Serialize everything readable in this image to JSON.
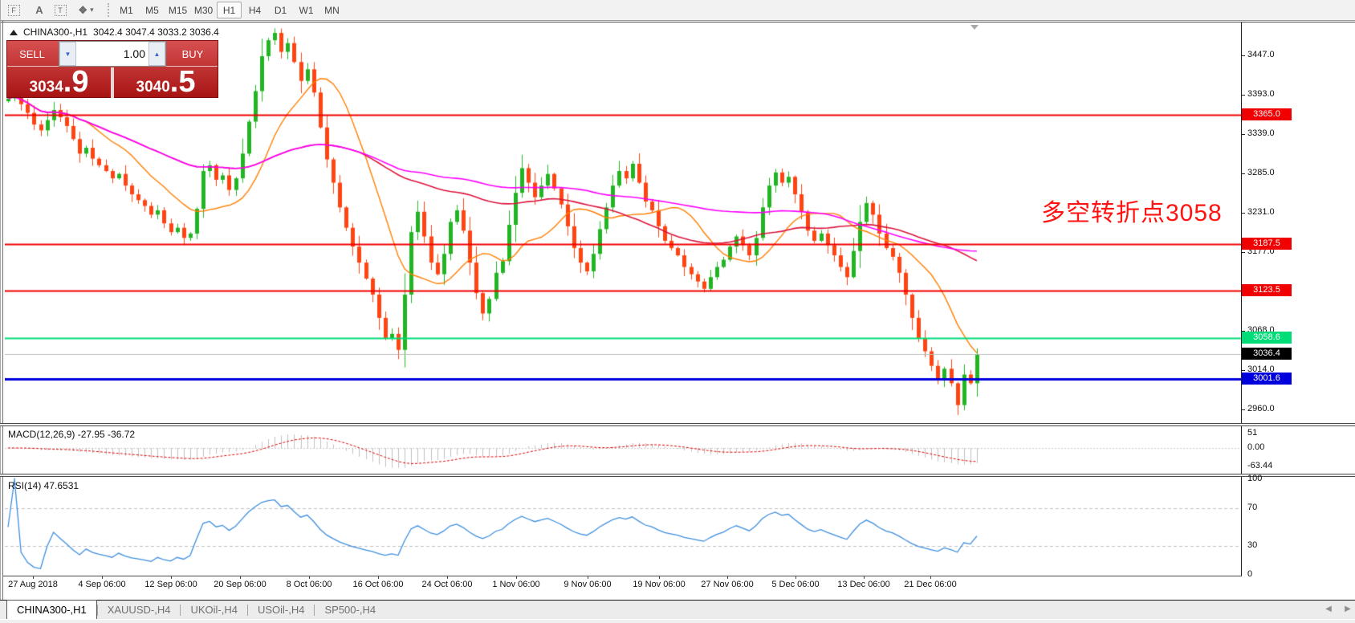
{
  "toolbar": {
    "icon_buttons": [
      {
        "name": "indicators-grid-icon",
        "glyph": "F"
      },
      {
        "name": "arrow-tool-icon",
        "glyph": "A"
      },
      {
        "name": "text-label-tool-icon",
        "glyph": "T"
      },
      {
        "name": "cycles-tool-icon",
        "glyph": "❖"
      }
    ],
    "dropdown_caret": "▾",
    "timeframes": [
      "M1",
      "M5",
      "M15",
      "M30",
      "H1",
      "H4",
      "D1",
      "W1",
      "MN"
    ],
    "active_timeframe": "H1"
  },
  "window": {
    "title_symbol": "CHINA300-,H1",
    "title_ohlc": "3042.4 3047.4 3033.2 3036.4"
  },
  "trade_panel": {
    "sell_label": "SELL",
    "buy_label": "BUY",
    "volume": "1.00",
    "sell_int": "3034",
    "sell_big": ".9",
    "buy_int": "3040",
    "buy_big": ".5",
    "spin_down": "▼",
    "spin_up": "▲"
  },
  "annotation": {
    "text": "多空转折点3058",
    "color": "#ff1212"
  },
  "price_axis": {
    "ticks": [
      3447.0,
      3393.0,
      3339.0,
      3285.0,
      3231.0,
      3177.0,
      3068.0,
      3014.0,
      2960.0
    ]
  },
  "levels": [
    {
      "price": 3365.0,
      "label": "3365.0",
      "color": "#f00000",
      "width": 2
    },
    {
      "price": 3187.5,
      "label": "3187.5",
      "color": "#f00000",
      "width": 2
    },
    {
      "price": 3123.5,
      "label": "3123.5",
      "color": "#f00000",
      "width": 2
    },
    {
      "price": 3058.6,
      "label": "3058.6",
      "color": "#00dc78",
      "width": 2
    },
    {
      "price": 3001.6,
      "label": "3001.6",
      "color": "#0000dc",
      "width": 3
    }
  ],
  "current_price": {
    "value": 3036.4,
    "label": "3036.4",
    "line_color": "#bdbdbd",
    "label_bg": "#000000"
  },
  "series": {
    "up_color": "#22b422",
    "down_color": "#ff4413",
    "ma_fast_color": "#ff7e00",
    "ma_mid_color": "#dc143c",
    "ma_slow_color": "#ff00ff",
    "ma_fast_period": 13,
    "ma_mid_period": 55,
    "ma_slow_period": 90,
    "closes": [
      3388,
      3392,
      3380,
      3368,
      3352,
      3344,
      3358,
      3372,
      3362,
      3350,
      3332,
      3312,
      3320,
      3305,
      3296,
      3288,
      3278,
      3284,
      3268,
      3256,
      3248,
      3240,
      3228,
      3234,
      3216,
      3204,
      3210,
      3196,
      3202,
      3236,
      3288,
      3296,
      3276,
      3282,
      3262,
      3278,
      3312,
      3356,
      3398,
      3446,
      3468,
      3478,
      3452,
      3464,
      3438,
      3412,
      3428,
      3396,
      3348,
      3304,
      3272,
      3238,
      3210,
      3184,
      3162,
      3140,
      3118,
      3086,
      3058,
      3064,
      3042,
      3118,
      3204,
      3232,
      3198,
      3162,
      3146,
      3174,
      3218,
      3234,
      3206,
      3162,
      3120,
      3092,
      3112,
      3148,
      3164,
      3214,
      3258,
      3292,
      3272,
      3252,
      3268,
      3284,
      3264,
      3242,
      3212,
      3182,
      3162,
      3150,
      3174,
      3208,
      3238,
      3268,
      3288,
      3278,
      3298,
      3272,
      3246,
      3234,
      3212,
      3192,
      3182,
      3172,
      3156,
      3146,
      3136,
      3126,
      3142,
      3156,
      3166,
      3184,
      3198,
      3186,
      3172,
      3196,
      3238,
      3268,
      3286,
      3272,
      3280,
      3256,
      3232,
      3206,
      3192,
      3202,
      3186,
      3172,
      3156,
      3142,
      3178,
      3218,
      3244,
      3228,
      3202,
      3182,
      3170,
      3148,
      3118,
      3086,
      3058,
      3040,
      3020,
      3002,
      3016,
      2996,
      2966,
      3008,
      2996,
      3036
    ]
  },
  "macd_panel": {
    "label": "MACD(12,26,9) -27.95 -36.72",
    "ticks": [
      {
        "label": "51",
        "v": 51
      },
      {
        "label": "0.00",
        "v": 0
      },
      {
        "label": "-63.44",
        "v": -63.44
      }
    ],
    "hist_color": "#c0c0c0",
    "signal_color": "#e00000"
  },
  "rsi_panel": {
    "label": "RSI(14) 47.6531",
    "ticks": [
      {
        "label": "100",
        "v": 100
      },
      {
        "label": "70",
        "v": 70
      },
      {
        "label": "30",
        "v": 30
      },
      {
        "label": "0",
        "v": 0
      }
    ],
    "line_color": "#3e8ede",
    "level_high": 70,
    "level_low": 30
  },
  "time_axis": {
    "labels": [
      "27 Aug 2018",
      "4 Sep 06:00",
      "12 Sep 06:00",
      "20 Sep 06:00",
      "8 Oct 06:00",
      "16 Oct 06:00",
      "24 Oct 06:00",
      "1 Nov 06:00",
      "9 Nov 06:00",
      "19 Nov 06:00",
      "27 Nov 06:00",
      "5 Dec 06:00",
      "13 Dec 06:00",
      "21 Dec 06:00"
    ]
  },
  "tabs": [
    {
      "label": "CHINA300-,H1",
      "active": true
    },
    {
      "label": "XAUUSD-,H4",
      "active": false
    },
    {
      "label": "UKOil-,H4",
      "active": false
    },
    {
      "label": "USOil-,H4",
      "active": false
    },
    {
      "label": "SP500-,H4",
      "active": false
    }
  ],
  "tab_scroll": {
    "left": "◀",
    "right": "▶"
  }
}
